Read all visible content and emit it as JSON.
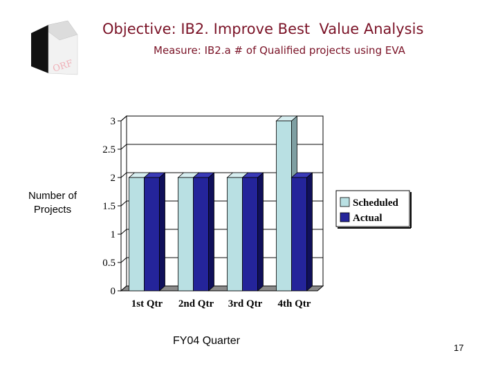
{
  "header": {
    "title": "Objective: IB2. Improve Best  Value Analysis",
    "subtitle": "Measure: IB2.a # of Qualified projects using EVA",
    "logo_text": "ORF"
  },
  "footer": {
    "page_number": "17"
  },
  "chart_data": {
    "type": "bar",
    "categories": [
      "1st Qtr",
      "2nd Qtr",
      "3rd Qtr",
      "4th Qtr"
    ],
    "series": [
      {
        "name": "Scheduled",
        "values": [
          2,
          2,
          2,
          3
        ],
        "color": "#b9e0e3"
      },
      {
        "name": "Actual",
        "values": [
          2,
          2,
          2,
          2
        ],
        "color": "#24249a"
      }
    ],
    "ylabel": "Number of Projects",
    "xlabel": "FY04 Quarter",
    "ylim": [
      0,
      3
    ],
    "yticks": [
      "0",
      "0.5",
      "1",
      "1.5",
      "2",
      "2.5",
      "3"
    ],
    "grid": true,
    "legend": "right",
    "style": "3d-bar"
  }
}
